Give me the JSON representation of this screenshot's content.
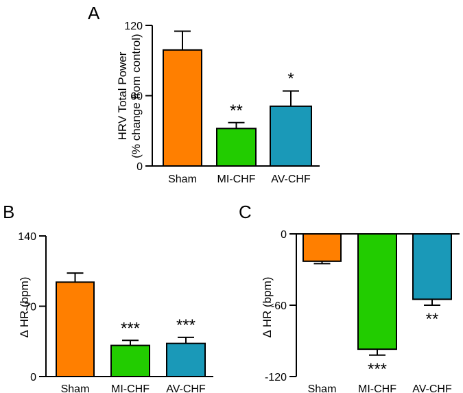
{
  "chart_data": [
    {
      "panel": "A",
      "type": "bar",
      "categories": [
        "Sham",
        "MI-CHF",
        "AV-CHF"
      ],
      "values": [
        99,
        32,
        51
      ],
      "errors": [
        16,
        5,
        13
      ],
      "annotations": [
        "",
        "**",
        "*"
      ],
      "ylabel": [
        "HRV Total Power",
        "(% change from control)"
      ],
      "yticks": [
        "0",
        "60",
        "120"
      ],
      "ylim": [
        0,
        120
      ],
      "colors": [
        "#ff7f00",
        "#22cc00",
        "#1a99b8"
      ]
    },
    {
      "panel": "B",
      "type": "bar",
      "categories": [
        "Sham",
        "MI-CHF",
        "AV-CHF"
      ],
      "values": [
        94,
        31,
        33
      ],
      "errors": [
        9,
        5,
        6
      ],
      "annotations": [
        "",
        "***",
        "***"
      ],
      "ylabel": [
        "Δ HR (bpm)"
      ],
      "yticks": [
        "0",
        "70",
        "140"
      ],
      "ylim": [
        0,
        140
      ],
      "colors": [
        "#ff7f00",
        "#22cc00",
        "#1a99b8"
      ]
    },
    {
      "panel": "C",
      "type": "bar",
      "categories": [
        "Sham",
        "MI-CHF",
        "AV-CHF"
      ],
      "values": [
        -23,
        -97,
        -55
      ],
      "errors": [
        2,
        5,
        5
      ],
      "annotations": [
        "",
        "***",
        "**"
      ],
      "ylabel": [
        "Δ HR (bpm)"
      ],
      "yticks": [
        "0",
        "-60",
        "-120"
      ],
      "ylim": [
        -120,
        0
      ],
      "colors": [
        "#ff7f00",
        "#22cc00",
        "#1a99b8"
      ]
    }
  ]
}
